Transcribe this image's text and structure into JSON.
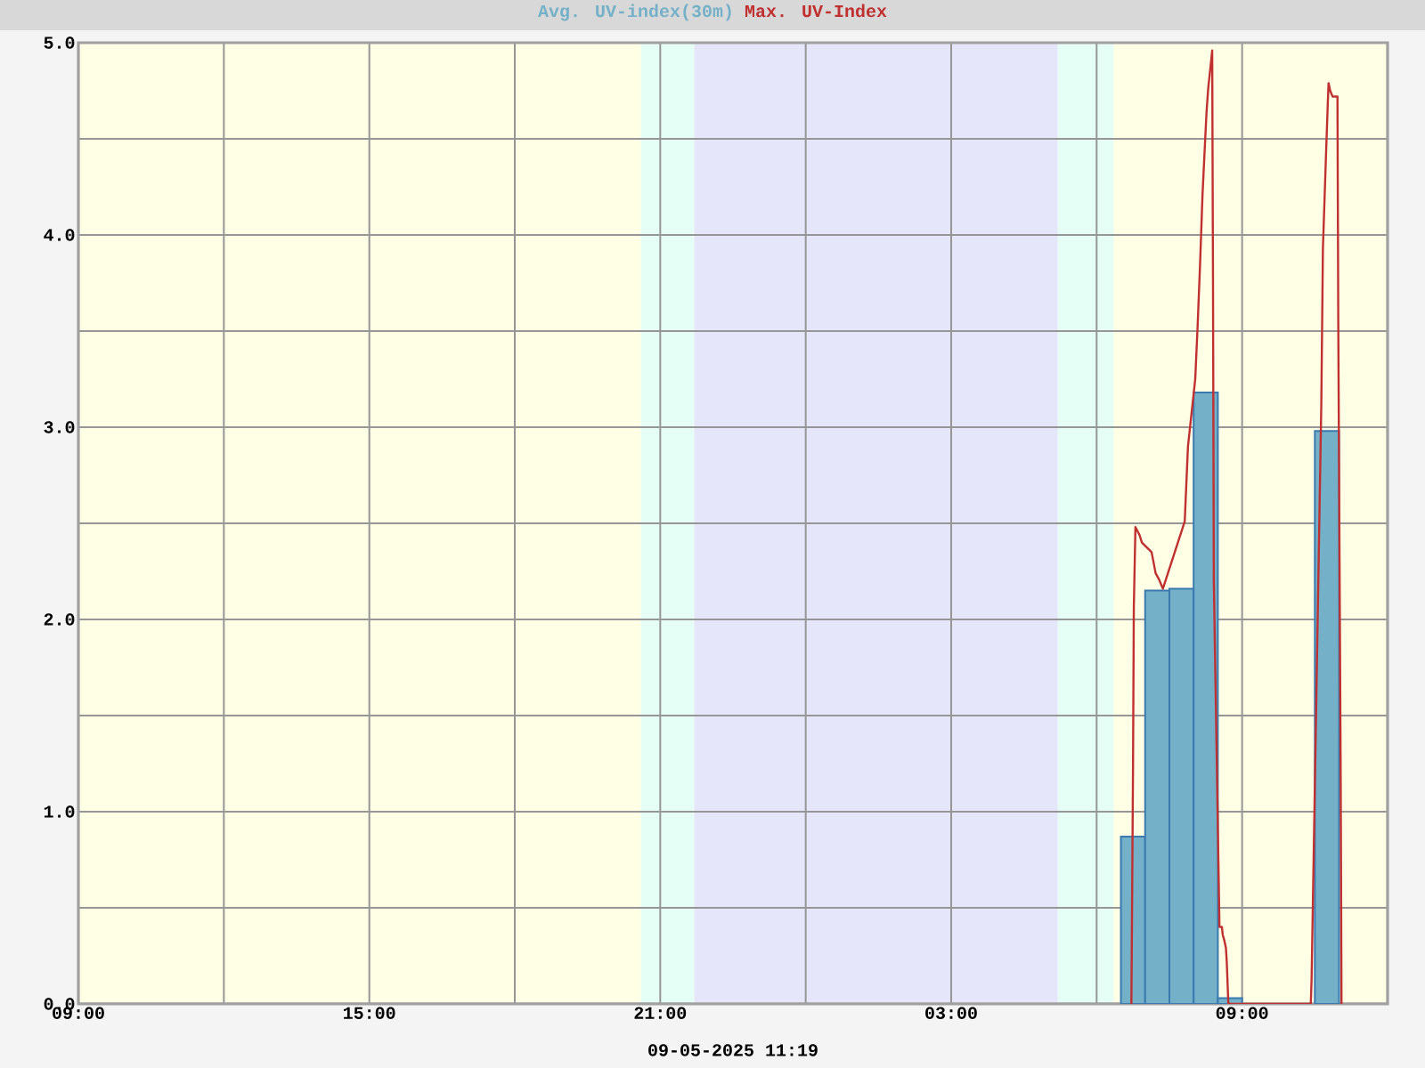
{
  "chart_data": {
    "type": "bar",
    "xlabel": "09-05-2025 11:19",
    "xlim": [
      "2025-05-08T09:00",
      "2025-05-09T12:00"
    ],
    "ylim": [
      0,
      5
    ],
    "xticks": [
      {
        "value": "2025-05-08T09:00",
        "label": "09:00"
      },
      {
        "value": "2025-05-08T12:00",
        "label": null
      },
      {
        "value": "2025-05-08T15:00",
        "label": "15:00"
      },
      {
        "value": "2025-05-08T18:00",
        "label": null
      },
      {
        "value": "2025-05-08T21:00",
        "label": "21:00"
      },
      {
        "value": "2025-05-09T00:00",
        "label": null
      },
      {
        "value": "2025-05-09T03:00",
        "label": "03:00"
      },
      {
        "value": "2025-05-09T06:00",
        "label": null
      },
      {
        "value": "2025-05-09T09:00",
        "label": "09:00"
      }
    ],
    "yticks": [
      {
        "value": 0,
        "label": "0.0"
      },
      {
        "value": 0.5,
        "label": null
      },
      {
        "value": 1,
        "label": "1.0"
      },
      {
        "value": 1.5,
        "label": null
      },
      {
        "value": 2,
        "label": "2.0"
      },
      {
        "value": 2.5,
        "label": null
      },
      {
        "value": 3,
        "label": "3.0"
      },
      {
        "value": 3.5,
        "label": null
      },
      {
        "value": 4,
        "label": "4.0"
      },
      {
        "value": 4.5,
        "label": null
      },
      {
        "value": 5,
        "label": "5.0"
      }
    ],
    "grid": true,
    "legend": "top",
    "bands": [
      {
        "axis": "x",
        "from": "2025-05-08T20:36",
        "to": "2025-05-08T21:42",
        "color": "#e6fff6"
      },
      {
        "axis": "x",
        "from": "2025-05-08T21:42",
        "to": "2025-05-09T05:12",
        "color": "#e6e6fa"
      },
      {
        "axis": "x",
        "from": "2025-05-09T05:12",
        "to": "2025-05-09T06:21",
        "color": "#e6fff6"
      }
    ],
    "series": [
      {
        "name": "Avg. UV-index(30m)",
        "color": "#74b0c8",
        "x": [
          "2025-05-09T06:45",
          "2025-05-09T07:15",
          "2025-05-09T07:45",
          "2025-05-09T08:15",
          "2025-05-09T08:45",
          "2025-05-09T10:45"
        ],
        "values": [
          0.87,
          2.15,
          2.16,
          3.18,
          0.03,
          2.98
        ]
      },
      {
        "name": "Max. UV-Index",
        "type": "line",
        "color": "#c03030",
        "x": [
          "2025-05-09T06:43",
          "2025-05-09T06:45",
          "2025-05-09T06:46",
          "2025-05-09T06:48",
          "2025-05-09T06:53",
          "2025-05-09T06:56",
          "2025-05-09T07:08",
          "2025-05-09T07:13",
          "2025-05-09T07:17",
          "2025-05-09T07:22",
          "2025-05-09T07:49",
          "2025-05-09T07:53",
          "2025-05-09T08:02",
          "2025-05-09T08:05",
          "2025-05-09T08:08",
          "2025-05-09T08:11",
          "2025-05-09T08:14",
          "2025-05-09T08:16",
          "2025-05-09T08:18",
          "2025-05-09T08:20",
          "2025-05-09T08:22",
          "2025-05-09T08:23",
          "2025-05-09T08:24",
          "2025-05-09T08:25",
          "2025-05-09T08:32",
          "2025-05-09T08:35",
          "2025-05-09T08:36",
          "2025-05-09T08:38",
          "2025-05-09T08:40",
          "2025-05-09T08:41",
          "2025-05-09T08:43",
          "2025-05-09T10:25",
          "2025-05-09T10:26",
          "2025-05-09T10:38",
          "2025-05-09T10:40",
          "2025-05-09T10:44",
          "2025-05-09T10:46",
          "2025-05-09T10:47",
          "2025-05-09T10:49",
          "2025-05-09T10:52",
          "2025-05-09T10:58",
          "2025-05-09T10:59",
          "2025-05-09T11:02",
          "2025-05-09T11:03"
        ],
        "values": [
          0,
          1.22,
          2.06,
          2.48,
          2.44,
          2.4,
          2.35,
          2.24,
          2.21,
          2.16,
          2.51,
          2.9,
          3.25,
          3.53,
          3.85,
          4.21,
          4.47,
          4.64,
          4.76,
          4.84,
          4.92,
          4.96,
          3.73,
          2.2,
          0.4,
          0.4,
          0.36,
          0.33,
          0.29,
          0.22,
          0,
          0,
          0.13,
          3.12,
          3.93,
          4.44,
          4.68,
          4.79,
          4.75,
          4.72,
          4.72,
          3.54,
          1.18,
          0
        ]
      }
    ]
  }
}
